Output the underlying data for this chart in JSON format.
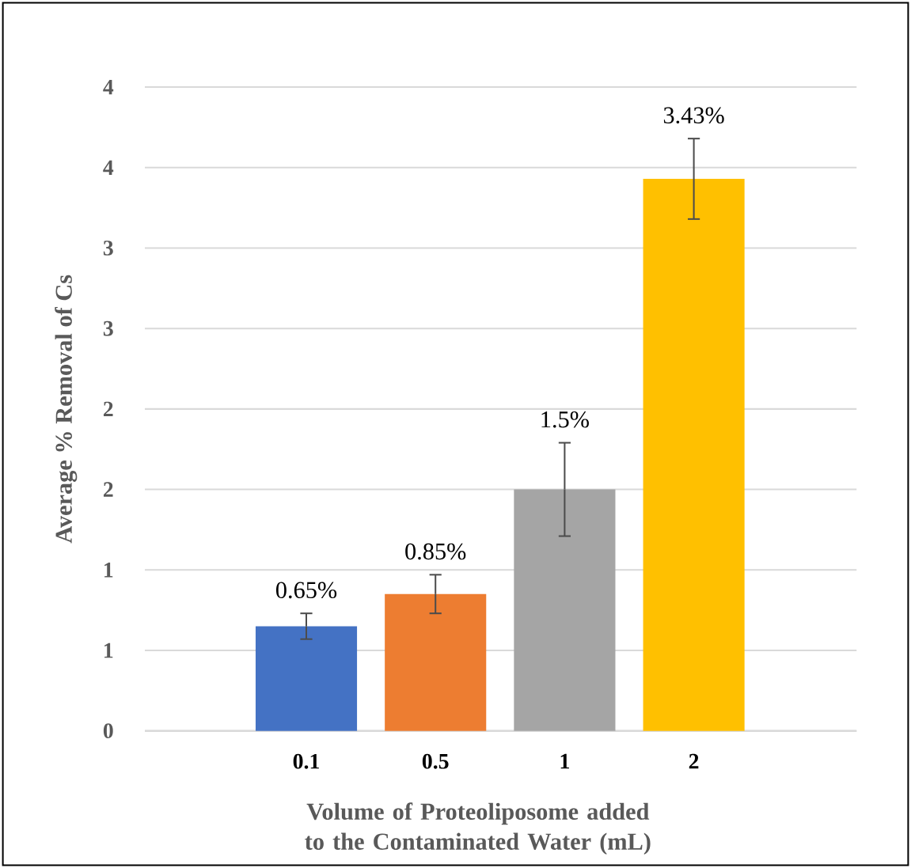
{
  "chart_data": {
    "type": "bar",
    "xlabel": "Volume of Proteoliposome added to the Contaminated Water (mL)",
    "ylabel": "Average % Removal of Cs",
    "categories": [
      "0.1",
      "0.5",
      "1",
      "2"
    ],
    "values": [
      0.65,
      0.85,
      1.5,
      3.43
    ],
    "colors": [
      "#4472c4",
      "#ed7d31",
      "#a5a5a5",
      "#ffc000"
    ],
    "errors": [
      0.08,
      0.12,
      0.29,
      0.25
    ],
    "value_labels": [
      "0.65%",
      "0.85%",
      "1.5%",
      "3.43%"
    ],
    "ylim": [
      0,
      4
    ],
    "yticks": [
      0,
      {
        "value": 0.5,
        "label": "1"
      },
      {
        "value": 1,
        "label": "1"
      },
      {
        "value": 1.5,
        "label": "2"
      },
      {
        "value": 2,
        "label": "2"
      },
      {
        "value": 2.5,
        "label": "3"
      },
      {
        "value": 3,
        "label": "3"
      },
      {
        "value": 3.5,
        "label": "4"
      },
      {
        "value": 4,
        "label": "4"
      }
    ],
    "grid": "y"
  }
}
